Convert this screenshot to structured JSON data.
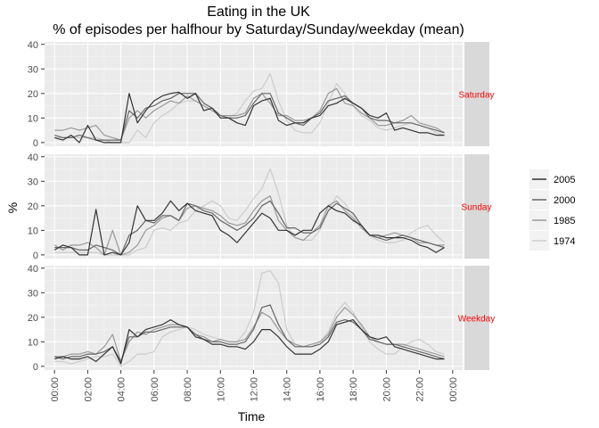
{
  "chart_data": {
    "type": "line",
    "title": "Eating in the UK",
    "subtitle": "% of episodes per halfhour by Saturday/Sunday/weekday (mean)",
    "xlabel": "Time",
    "ylabel": "%",
    "x_ticks": [
      "00:00",
      "02:00",
      "04:00",
      "06:00",
      "08:00",
      "10:00",
      "12:00",
      "14:00",
      "16:00",
      "18:00",
      "20:00",
      "22:00",
      "00:00"
    ],
    "y_ticks": [
      0,
      10,
      20,
      30,
      40
    ],
    "ylim": [
      -1.5,
      41
    ],
    "x_range_hours": [
      -0.6,
      24.6
    ],
    "grid": true,
    "legend_position": "right",
    "series_meta": [
      {
        "name": "2005",
        "color": "#333333"
      },
      {
        "name": "2000",
        "color": "#666666"
      },
      {
        "name": "1985",
        "color": "#999999"
      },
      {
        "name": "1974",
        "color": "#cccccc"
      }
    ],
    "panels": [
      {
        "strip": "Saturday",
        "x_hours": [
          0,
          0.5,
          1,
          1.5,
          2,
          2.5,
          3,
          3.5,
          4,
          4.5,
          5,
          5.5,
          6,
          6.5,
          7,
          7.5,
          8,
          8.5,
          9,
          9.5,
          10,
          10.5,
          11,
          11.5,
          12,
          12.5,
          13,
          13.5,
          14,
          14.5,
          15,
          15.5,
          16,
          16.5,
          17,
          17.5,
          18,
          18.5,
          19,
          19.5,
          20,
          20.5,
          21,
          21.5,
          22,
          22.5,
          23,
          23.5
        ],
        "series": [
          {
            "name": "2005",
            "values": [
              2,
              1,
              3,
              0,
              7,
              1,
              0,
              0,
              0,
              20,
              8,
              13,
              17,
              19,
              20,
              20.5,
              18,
              20,
              13,
              14,
              10,
              10,
              8,
              7,
              15,
              17,
              18,
              9,
              7,
              8,
              8,
              10,
              11,
              15,
              16,
              18,
              16,
              14,
              11,
              10,
              12,
              5,
              6,
              5,
              4,
              4,
              3,
              3
            ]
          },
          {
            "name": "2000",
            "values": [
              3,
              2,
              2,
              3,
              2,
              1,
              1,
              1,
              1,
              13,
              10,
              14,
              15,
              17,
              18,
              20,
              20,
              20,
              16,
              14,
              11,
              10,
              10,
              11,
              16,
              20,
              20,
              12,
              10,
              8,
              7,
              10,
              12,
              17,
              18,
              19,
              16,
              14,
              10,
              9,
              9,
              8,
              8,
              8,
              7,
              6,
              5,
              4
            ]
          },
          {
            "name": "1985",
            "values": [
              5,
              5,
              6,
              5,
              6,
              7,
              3,
              2,
              1,
              10,
              13,
              10,
              13,
              15,
              17,
              16,
              19,
              17,
              15,
              13,
              11,
              11,
              11,
              12,
              18,
              20,
              16,
              11,
              11,
              9,
              9,
              10,
              13,
              20,
              22,
              16,
              15,
              12,
              10,
              7,
              7,
              8,
              9,
              11,
              8,
              7,
              6,
              4
            ]
          },
          {
            "name": "1974",
            "values": [
              2,
              2,
              2,
              2,
              2,
              2,
              1,
              0,
              0,
              0,
              5,
              2,
              8,
              11,
              13,
              16,
              17,
              17,
              15,
              13,
              11,
              10,
              12,
              17,
              21,
              22,
              28,
              17,
              9,
              5,
              4,
              4,
              8,
              16,
              24,
              20,
              15,
              11,
              9,
              6,
              5,
              6,
              7,
              8,
              7,
              6,
              4,
              3
            ]
          }
        ]
      },
      {
        "strip": "Sunday",
        "x_hours": [
          0,
          0.5,
          1,
          1.5,
          2,
          2.5,
          3,
          3.5,
          4,
          4.5,
          5,
          5.5,
          6,
          6.5,
          7,
          7.5,
          8,
          8.5,
          9,
          9.5,
          10,
          10.5,
          11,
          11.5,
          12,
          12.5,
          13,
          13.5,
          14,
          14.5,
          15,
          15.5,
          16,
          16.5,
          17,
          17.5,
          18,
          18.5,
          19,
          19.5,
          20,
          20.5,
          21,
          21.5,
          22,
          22.5,
          23,
          23.5
        ],
        "series": [
          {
            "name": "2005",
            "values": [
              2,
              4,
              3,
              0,
              0,
              18.5,
              0,
              1,
              0,
              5,
              20,
              14,
              14,
              17,
              22,
              18,
              21,
              18,
              17,
              16,
              10,
              8,
              5,
              9,
              13,
              17,
              15,
              10,
              10,
              8,
              10,
              10,
              17,
              20,
              18,
              17,
              14,
              12,
              8,
              8,
              7,
              7,
              7,
              6,
              4,
              3,
              1,
              3
            ]
          },
          {
            "name": "2000",
            "values": [
              3,
              3,
              3,
              2,
              2,
              4,
              3,
              2,
              0,
              8,
              10,
              14,
              13,
              16,
              16,
              14,
              21,
              20,
              18,
              17,
              14,
              12,
              10,
              12,
              15,
              20,
              22,
              17,
              11,
              11,
              9,
              9,
              11,
              18,
              21,
              19,
              17,
              12,
              8,
              7,
              6,
              7,
              8,
              7,
              6,
              5,
              4,
              3
            ]
          },
          {
            "name": "1985",
            "values": [
              4,
              2,
              4,
              4,
              5,
              3,
              0,
              10,
              0,
              1,
              4,
              10,
              12,
              15,
              16,
              14,
              19,
              20,
              19,
              18,
              16,
              13,
              12,
              13,
              18,
              22,
              24,
              14,
              10,
              7,
              6,
              9,
              12,
              20,
              22,
              18,
              15,
              11,
              8,
              7,
              8,
              9,
              8,
              7,
              5,
              5,
              4,
              4
            ]
          },
          {
            "name": "1974",
            "values": [
              1,
              1,
              1,
              1,
              1,
              1,
              0,
              0,
              0,
              0,
              2,
              3,
              10,
              11,
              10,
              13,
              14,
              18,
              20,
              22,
              20,
              15,
              14,
              18,
              23,
              27,
              35,
              25,
              12,
              7,
              6,
              6,
              10,
              18,
              24,
              21,
              16,
              11,
              8,
              6,
              5,
              5,
              6,
              9,
              11,
              12,
              8,
              5
            ]
          }
        ]
      },
      {
        "strip": "Weekday",
        "x_hours": [
          0,
          0.5,
          1,
          1.5,
          2,
          2.5,
          3,
          3.5,
          4,
          4.5,
          5,
          5.5,
          6,
          6.5,
          7,
          7.5,
          8,
          8.5,
          9,
          9.5,
          10,
          10.5,
          11,
          11.5,
          12,
          12.5,
          13,
          13.5,
          14,
          14.5,
          15,
          15.5,
          16,
          16.5,
          17,
          17.5,
          18,
          18.5,
          19,
          19.5,
          20,
          20.5,
          21,
          21.5,
          22,
          22.5,
          23,
          23.5
        ],
        "series": [
          {
            "name": "2005",
            "values": [
              3,
              4,
              3,
              3,
              4,
              2,
              5,
              8,
              1,
              15,
              12,
              15,
              16,
              17,
              19,
              17,
              16,
              12,
              11,
              9,
              9,
              8,
              8,
              7,
              10,
              15,
              15,
              12,
              8,
              5,
              5,
              5,
              7,
              10,
              17,
              18,
              19,
              15,
              12,
              11,
              12,
              8,
              7,
              6,
              5,
              4,
              3,
              3
            ]
          },
          {
            "name": "2000",
            "values": [
              4,
              3,
              4,
              4,
              5,
              5,
              6,
              8,
              2,
              12,
              12,
              14,
              14,
              15,
              16,
              16,
              16,
              13,
              11,
              10,
              10,
              9,
              9,
              10,
              15,
              24,
              25,
              17,
              11,
              8,
              8,
              8,
              9,
              12,
              18,
              19,
              18,
              15,
              11,
              10,
              9,
              9,
              8,
              7,
              6,
              5,
              4,
              3
            ]
          },
          {
            "name": "1985",
            "values": [
              4,
              4,
              5,
              5,
              6,
              5,
              8,
              13,
              2,
              10,
              14,
              13,
              15,
              16,
              17,
              17,
              16,
              13,
              12,
              10,
              11,
              10,
              10,
              11,
              16,
              22,
              20,
              15,
              11,
              9,
              8,
              9,
              10,
              13,
              20,
              24,
              21,
              17,
              12,
              10,
              9,
              9,
              9,
              8,
              7,
              6,
              5,
              4
            ]
          },
          {
            "name": "1974",
            "values": [
              2,
              2,
              1,
              2,
              3,
              4,
              4,
              5,
              0,
              2,
              5,
              5,
              6,
              12,
              14,
              15,
              16,
              15,
              13,
              12,
              11,
              10,
              10,
              14,
              22,
              38,
              39,
              34,
              15,
              9,
              8,
              8,
              10,
              14,
              22,
              26,
              22,
              16,
              10,
              7,
              5,
              5,
              8,
              10,
              11,
              9,
              6,
              5
            ]
          }
        ]
      }
    ]
  }
}
